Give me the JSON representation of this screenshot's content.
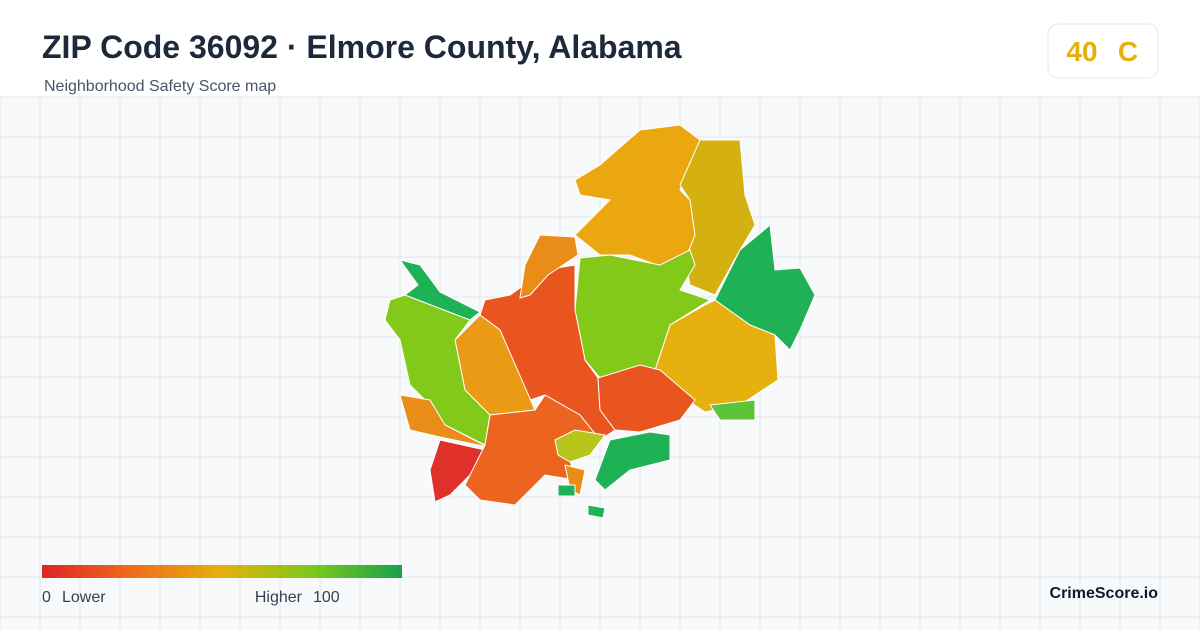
{
  "header": {
    "title": "ZIP Code 36092 · Elmore County, Alabama",
    "subtitle": "Neighborhood Safety Score map"
  },
  "score": {
    "value": 40,
    "grade": "C"
  },
  "legend": {
    "min": 0,
    "min_label": "Lower",
    "max_label": "Higher",
    "max": 100
  },
  "brand": "CrimeScore.io"
}
